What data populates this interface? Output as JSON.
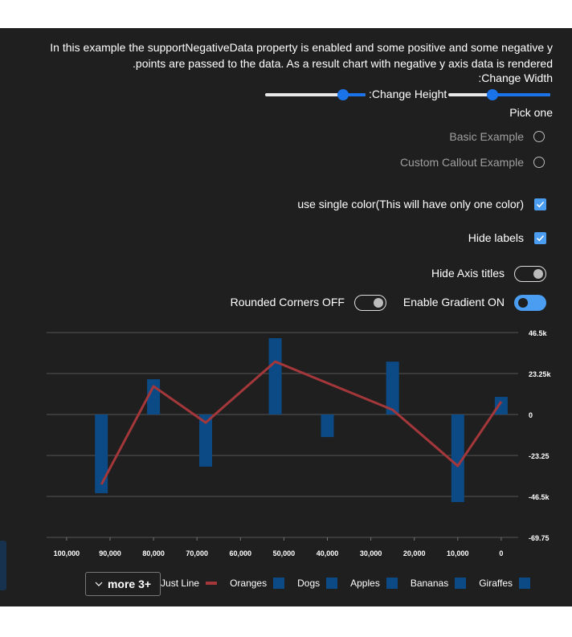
{
  "description": "In this example the supportNegativeData property is enabled and some positive and some negative y points are passed to the data. As a result chart with negative y axis data is rendered.",
  "controls": {
    "change_width": "Change Width:",
    "change_height": "Change Height:",
    "pick_one": "Pick one",
    "radio_options": [
      "Basic Example",
      "Custom Callout Example"
    ],
    "checkboxes": [
      {
        "label": "use single color(This will have only one color)",
        "checked": true
      },
      {
        "label": "Hide labels",
        "checked": true
      }
    ],
    "toggles": [
      {
        "label": "Hide Axis titles",
        "on": false
      },
      {
        "label": "Rounded Corners OFF",
        "on": false
      },
      {
        "label": "Enable Gradient ON",
        "on": true
      }
    ]
  },
  "chart_data": {
    "type": "bar-line",
    "xlim": [
      104600,
      -3900
    ],
    "xticks": [
      {
        "value": 100000,
        "label": "100,000"
      },
      {
        "value": 90000,
        "label": "90,000"
      },
      {
        "value": 80000,
        "label": "80,000"
      },
      {
        "value": 70000,
        "label": "70,000"
      },
      {
        "value": 60000,
        "label": "60,000"
      },
      {
        "value": 50000,
        "label": "50,000"
      },
      {
        "value": 40000,
        "label": "40,000"
      },
      {
        "value": 30000,
        "label": "30,000"
      },
      {
        "value": 20000,
        "label": "20,000"
      },
      {
        "value": 10000,
        "label": "10,000"
      },
      0
    ],
    "ylim": [
      -69750,
      46500
    ],
    "yticks": [
      {
        "value": 46500,
        "label": "46.5k"
      },
      {
        "value": 23250,
        "label": "23.25k"
      },
      0,
      {
        "value": -23250,
        "label": "-23.25"
      },
      {
        "value": -46500,
        "label": "-46.5k"
      },
      {
        "value": -69750,
        "label": "-69.75"
      }
    ],
    "grid": true,
    "series": [
      {
        "type": "bar",
        "color": "#0b4a85",
        "x": [
          92000,
          80000,
          68000,
          52000,
          40000,
          25000,
          10000,
          0
        ],
        "values": [
          -44700,
          20000,
          -29600,
          43300,
          -12800,
          30000,
          -49700,
          10000
        ]
      },
      {
        "type": "line",
        "name": "Just Line",
        "color": "#a4373a",
        "x": [
          92000,
          80000,
          68000,
          52000,
          25000,
          10000,
          0
        ],
        "values": [
          -39700,
          16000,
          -4600,
          30000,
          2700,
          -29200,
          7300
        ]
      }
    ],
    "legend": [
      {
        "name": "Giraffes",
        "color": "#0b4a85"
      },
      {
        "name": "Bananas",
        "color": "#0b4a85"
      },
      {
        "name": "Apples",
        "color": "#0b4a85"
      },
      {
        "name": "Dogs",
        "color": "#0b4a85"
      },
      {
        "name": "Oranges",
        "color": "#0b4a85"
      },
      {
        "name": "Just Line",
        "color": "#a4373a"
      }
    ],
    "overflow_label": "more 3+"
  }
}
